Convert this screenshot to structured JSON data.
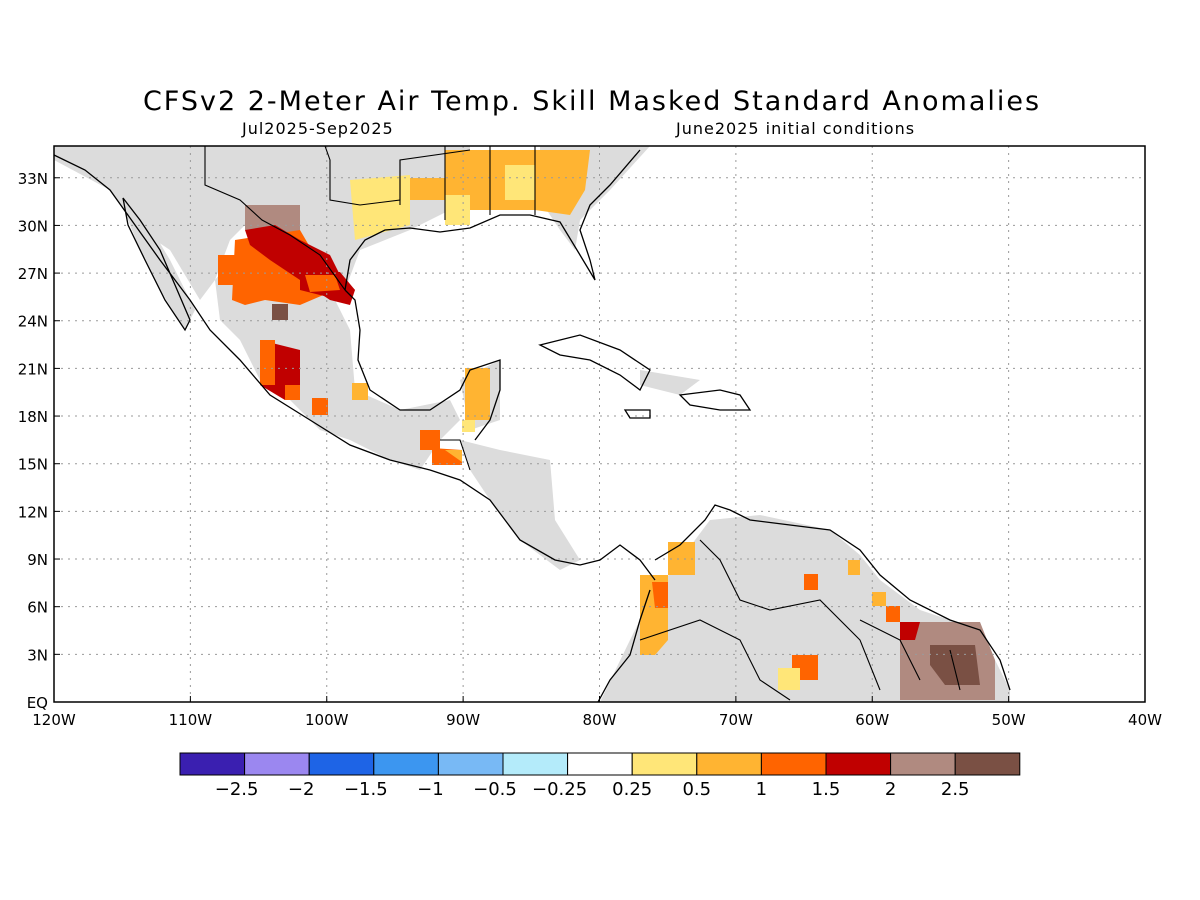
{
  "header": {
    "title": "CFSv2 2-Meter Air Temp. Skill Masked Standard Anomalies",
    "period": "Jul2025-Sep2025",
    "init": "June2025 initial conditions"
  },
  "map": {
    "lon_range": [
      -120,
      -40
    ],
    "lat_range": [
      0,
      35
    ],
    "lon_ticks": [
      {
        "v": -120,
        "label": "120W"
      },
      {
        "v": -110,
        "label": "110W"
      },
      {
        "v": -100,
        "label": "100W"
      },
      {
        "v": -90,
        "label": "90W"
      },
      {
        "v": -80,
        "label": "80W"
      },
      {
        "v": -70,
        "label": "70W"
      },
      {
        "v": -60,
        "label": "60W"
      },
      {
        "v": -50,
        "label": "50W"
      },
      {
        "v": -40,
        "label": "40W"
      }
    ],
    "lat_ticks": [
      {
        "v": 0,
        "label": "EQ"
      },
      {
        "v": 3,
        "label": "3N"
      },
      {
        "v": 6,
        "label": "6N"
      },
      {
        "v": 9,
        "label": "9N"
      },
      {
        "v": 12,
        "label": "12N"
      },
      {
        "v": 15,
        "label": "15N"
      },
      {
        "v": 18,
        "label": "18N"
      },
      {
        "v": 21,
        "label": "21N"
      },
      {
        "v": 24,
        "label": "24N"
      },
      {
        "v": 27,
        "label": "27N"
      },
      {
        "v": 30,
        "label": "30N"
      },
      {
        "v": 33,
        "label": "33N"
      }
    ],
    "gridlines": true
  },
  "colorbar": {
    "colors": [
      "#3a1fb0",
      "#9b87f0",
      "#1e64e6",
      "#3c96f0",
      "#78b9f5",
      "#b4ebfa",
      "#ffffff",
      "#ffe678",
      "#ffb432",
      "#ff6400",
      "#c00000",
      "#b08a80",
      "#7a5044"
    ],
    "labels": [
      "-2.5",
      "-2",
      "-1.5",
      "-1",
      "-0.5",
      "-0.25",
      "0.25",
      "0.5",
      "1",
      "1.5",
      "2",
      "2.5"
    ]
  },
  "colors": {
    "land_masked": "#dcdcdc",
    "coast": "#000000"
  }
}
